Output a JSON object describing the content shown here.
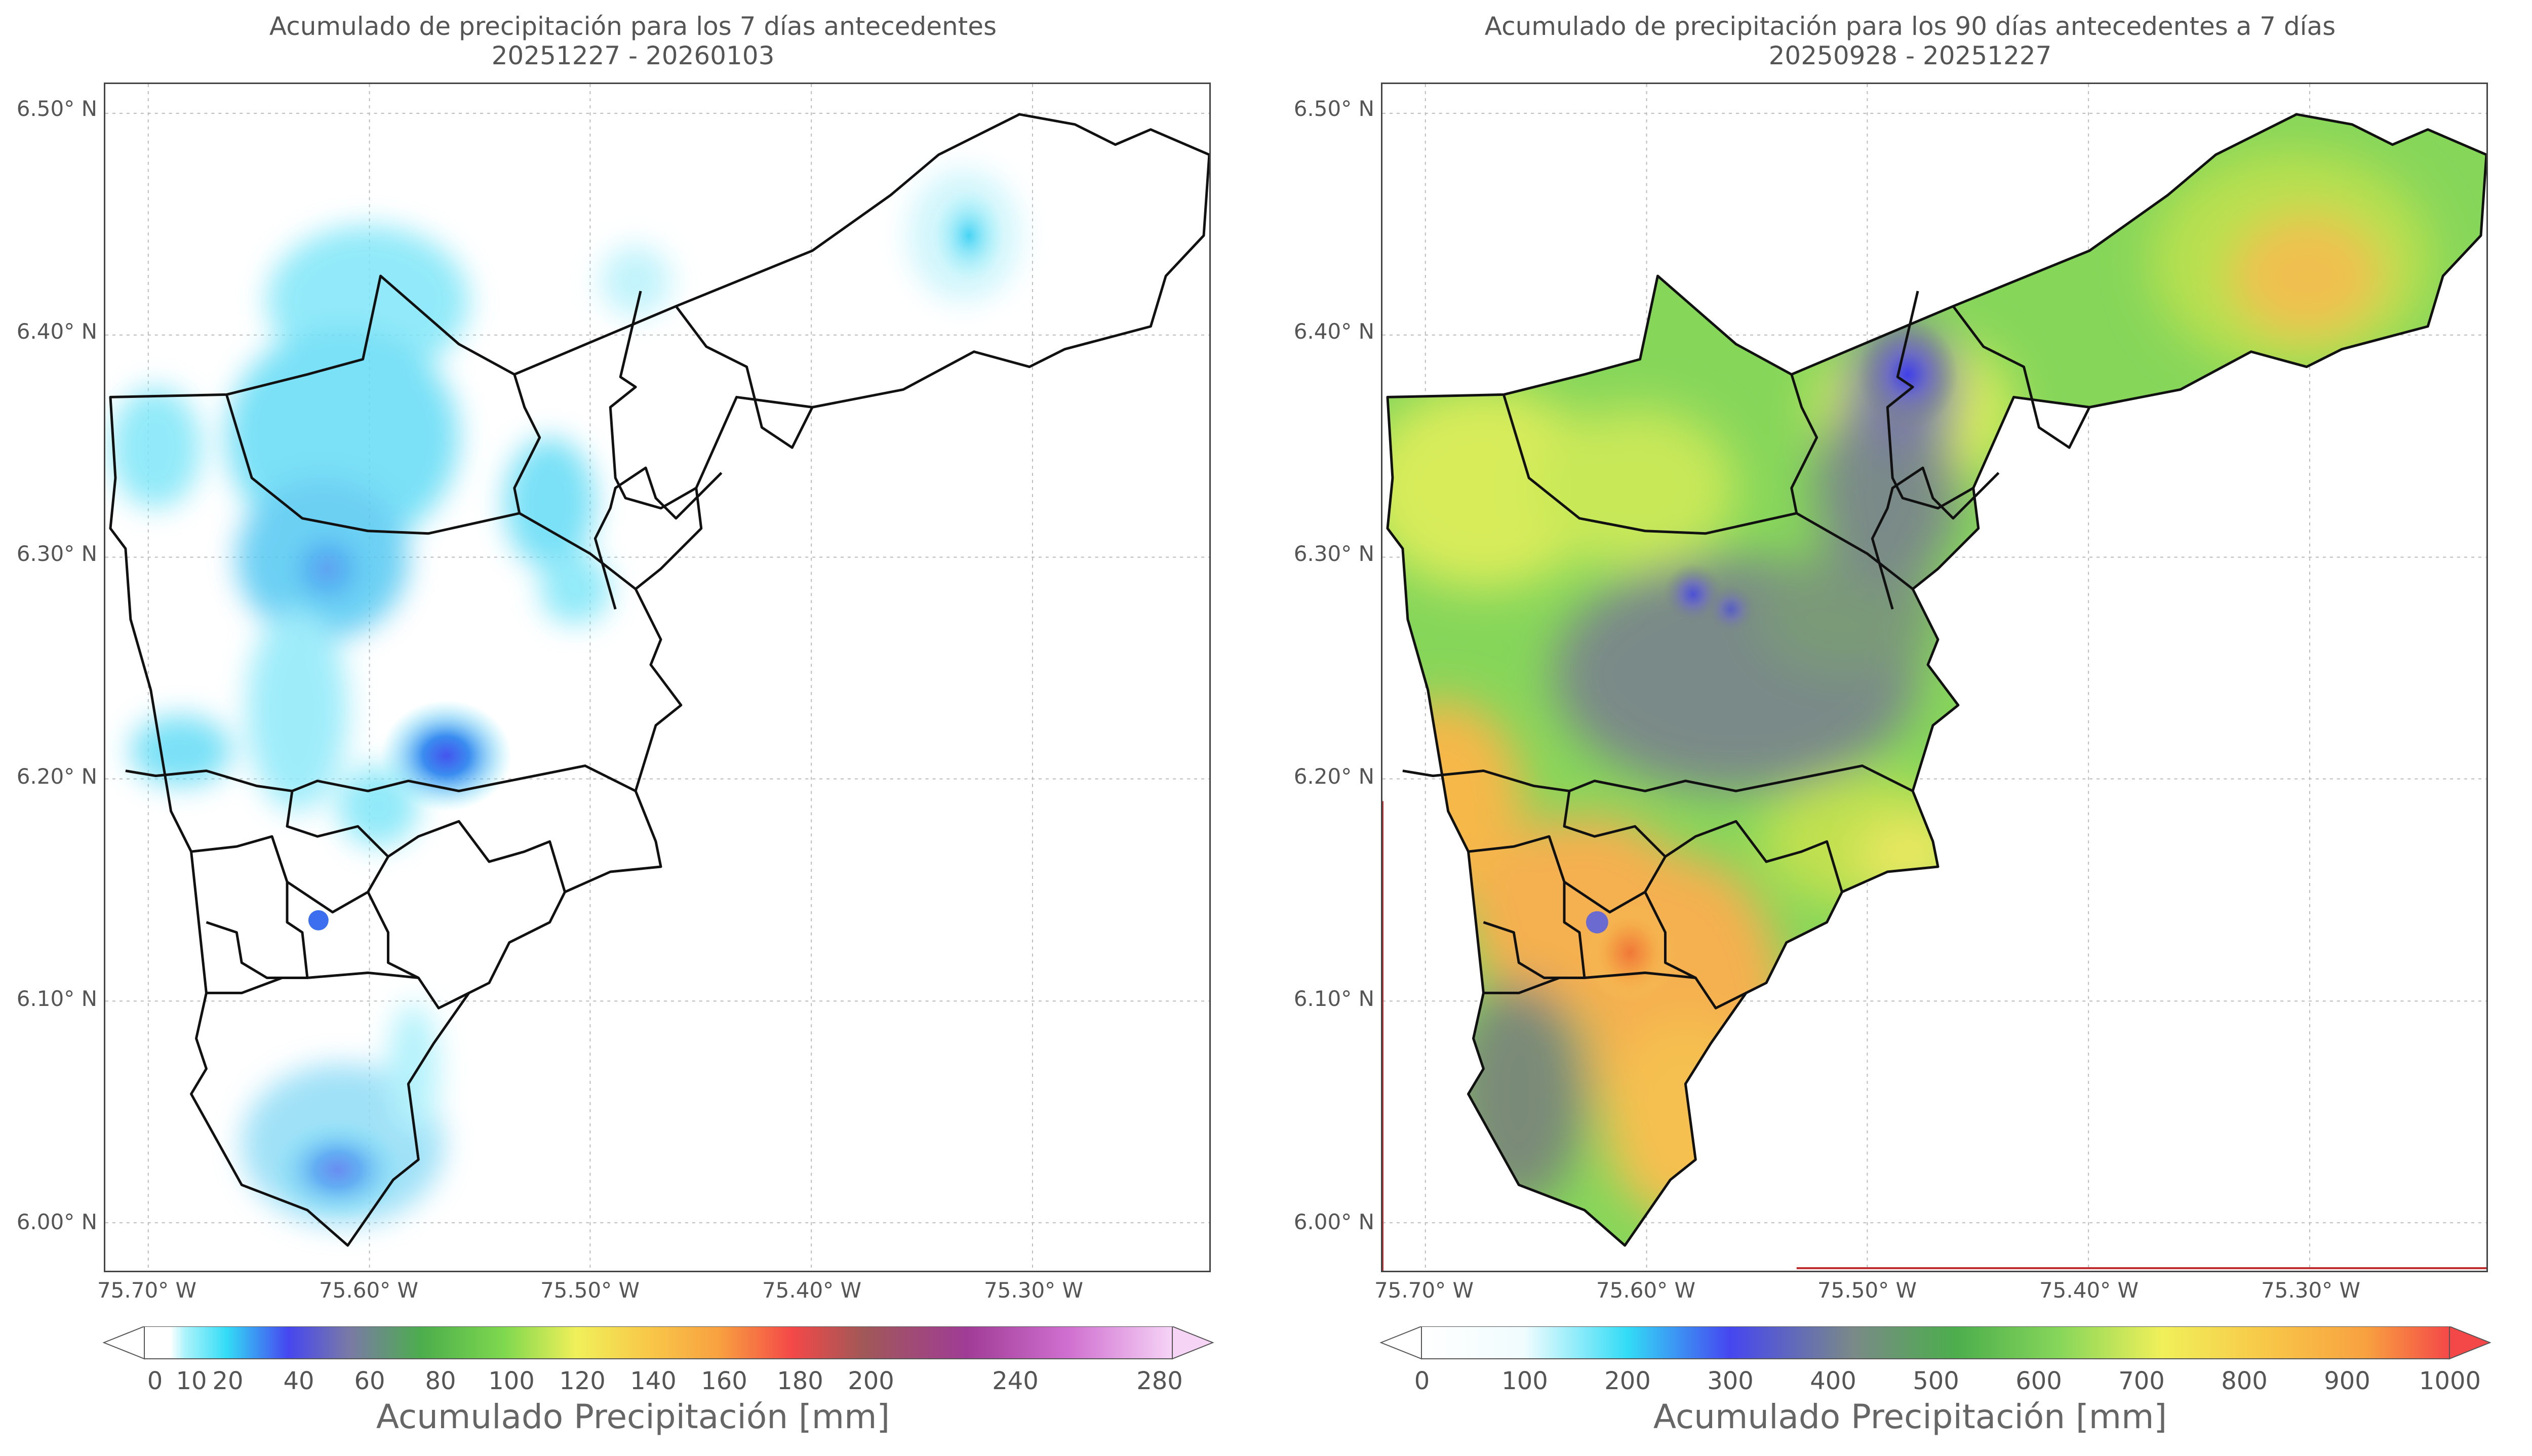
{
  "left": {
    "title": "Acumulado de precipitación para los 7 días antecedentes",
    "subtitle": "20251227 - 20260103",
    "colorbar_label": "Acumulado Precipitación [mm]",
    "colorbar_ticks": [
      "0",
      "10",
      "20",
      "40",
      "60",
      "80",
      "100",
      "120",
      "140",
      "160",
      "180",
      "200",
      "240",
      "280"
    ]
  },
  "right": {
    "title": "Acumulado de precipitación para los 90 días antecedentes a 7 días",
    "subtitle": "20250928 - 20251227",
    "colorbar_label": "Acumulado Precipitación [mm]",
    "colorbar_ticks": [
      "0",
      "100",
      "200",
      "300",
      "400",
      "500",
      "600",
      "700",
      "800",
      "900",
      "1000"
    ]
  },
  "axes": {
    "lat_labels": [
      "6.50° N",
      "6.40° N",
      "6.30° N",
      "6.20° N",
      "6.10° N",
      "6.00° N"
    ],
    "lon_labels": [
      "75.70° W",
      "75.60° W",
      "75.50° W",
      "75.40° W",
      "75.30° W"
    ]
  }
}
